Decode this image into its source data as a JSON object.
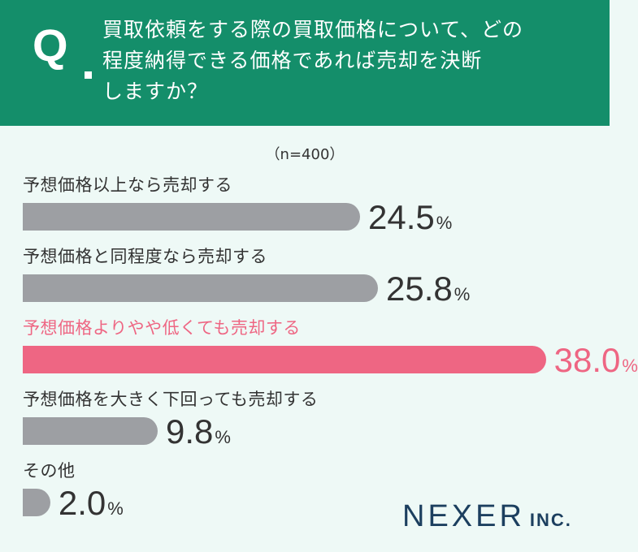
{
  "header": {
    "q_mark": "Q",
    "question_lines": [
      "買取依頼をする際の買取価格について、どの",
      "程度納得できる価格であれば売却を決断",
      "しますか？"
    ]
  },
  "sample_note": "（n=400）",
  "colors": {
    "header": "#148e6a",
    "background": "#eef9f6",
    "bar": "#9d9fa3",
    "highlight": "#ee6683"
  },
  "chart_data": {
    "type": "bar",
    "orientation": "horizontal",
    "title": "",
    "categories": [
      "予想価格以上なら売却する",
      "予想価格と同程度なら売却する",
      "予想価格よりやや低くても売却する",
      "予想価格を大きく下回っても売却する",
      "その他"
    ],
    "values": [
      24.5,
      25.8,
      38.0,
      9.8,
      2.0
    ],
    "value_labels": [
      "24.5",
      "25.8",
      "38.0",
      "9.8",
      "2.0"
    ],
    "unit": "%",
    "highlighted_index": 2,
    "xlim": [
      0,
      40
    ],
    "grid": false
  },
  "brand": {
    "name": "NEXER",
    "suffix": "INC."
  }
}
